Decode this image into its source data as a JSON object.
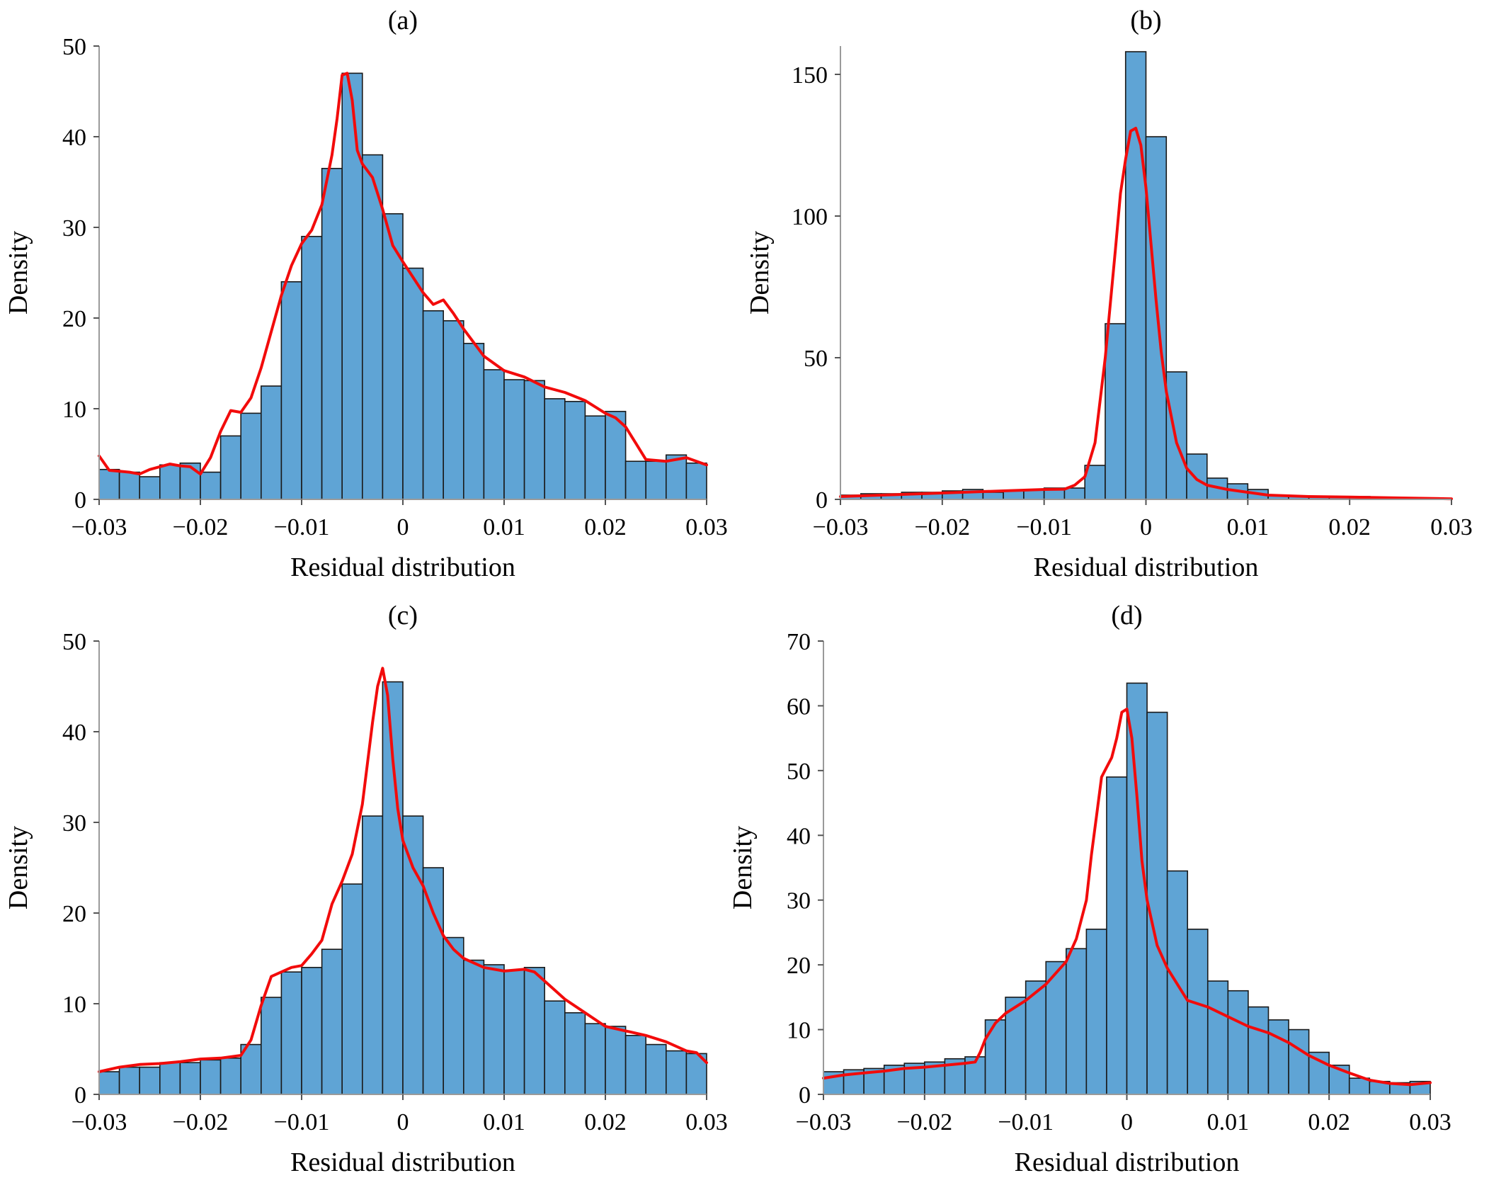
{
  "figure": {
    "colors": {
      "bar": "#5fa4d5",
      "kde": "#f20b0b",
      "edge": "#1a1a1a"
    }
  },
  "chart_data": [
    {
      "type": "bar",
      "title": "(a)",
      "xlabel": "Residual distribution",
      "ylabel": "Density",
      "xlim": [
        -0.03,
        0.03
      ],
      "ylim": [
        0,
        50
      ],
      "xticks": [
        -0.03,
        -0.02,
        -0.01,
        0,
        0.01,
        0.02,
        0.03
      ],
      "xtick_labels": [
        "−0.03",
        "−0.02",
        "−0.01",
        "0",
        "0.01",
        "0.02",
        "0.03"
      ],
      "yticks": [
        0,
        10,
        20,
        30,
        40,
        50
      ],
      "ytick_labels": [
        "0",
        "10",
        "20",
        "30",
        "40",
        "50"
      ],
      "bin_start": -0.03,
      "bin_width": 0.002,
      "values": [
        3.3,
        3.0,
        2.5,
        3.8,
        4.0,
        3.0,
        7.0,
        9.5,
        12.5,
        24,
        29,
        36.5,
        47,
        38,
        31.5,
        25.5,
        20.8,
        19.7,
        17.2,
        14.3,
        13.2,
        13.1,
        11.1,
        10.8,
        9.2,
        9.7,
        4.2,
        4.2,
        4.9,
        4.0
      ],
      "kde_x": [
        -0.03,
        -0.029,
        -0.028,
        -0.027,
        -0.026,
        -0.025,
        -0.024,
        -0.023,
        -0.022,
        -0.021,
        -0.02,
        -0.019,
        -0.018,
        -0.017,
        -0.016,
        -0.015,
        -0.014,
        -0.013,
        -0.012,
        -0.011,
        -0.01,
        -0.009,
        -0.008,
        -0.007,
        -0.0065,
        -0.006,
        -0.0055,
        -0.005,
        -0.0045,
        -0.004,
        -0.003,
        -0.002,
        -0.001,
        0,
        0.001,
        0.002,
        0.003,
        0.004,
        0.005,
        0.006,
        0.008,
        0.01,
        0.012,
        0.014,
        0.016,
        0.018,
        0.019,
        0.02,
        0.021,
        0.022,
        0.023,
        0.024,
        0.026,
        0.028,
        0.03
      ],
      "kde_y": [
        4.8,
        3.2,
        3.1,
        3.0,
        2.8,
        3.3,
        3.6,
        3.9,
        3.7,
        3.6,
        2.8,
        4.6,
        7.5,
        9.8,
        9.6,
        11.2,
        14.5,
        18.5,
        22.5,
        25.8,
        28.2,
        29.7,
        32.5,
        38.0,
        42.0,
        46.8,
        47.0,
        44.0,
        38.5,
        37.0,
        35.5,
        32.0,
        28.0,
        26.2,
        24.5,
        22.8,
        21.5,
        22.0,
        20.5,
        18.8,
        15.8,
        14.2,
        13.5,
        12.4,
        11.8,
        10.9,
        10.2,
        9.5,
        9.0,
        8.0,
        6.2,
        4.4,
        4.2,
        4.6,
        3.8
      ]
    },
    {
      "type": "bar",
      "title": "(b)",
      "xlabel": "Residual distribution",
      "ylabel": "Density",
      "xlim": [
        -0.03,
        0.03
      ],
      "ylim": [
        0,
        160
      ],
      "xticks": [
        -0.03,
        -0.02,
        -0.01,
        0,
        0.01,
        0.02,
        0.03
      ],
      "xtick_labels": [
        "−0.03",
        "−0.02",
        "−0.01",
        "0",
        "0.01",
        "0.02",
        "0.03"
      ],
      "yticks": [
        0,
        50,
        100,
        150
      ],
      "ytick_labels": [
        "0",
        "50",
        "100",
        "150"
      ],
      "bin_start": -0.03,
      "bin_width": 0.002,
      "values": [
        1.5,
        2.0,
        2.0,
        2.5,
        2.5,
        3.0,
        3.5,
        2.5,
        3.0,
        3.5,
        4.0,
        4.0,
        12.0,
        62.0,
        158.0,
        128.0,
        45.0,
        16.0,
        7.5,
        5.5,
        3.5,
        1.5,
        1.0,
        1.0,
        1.0,
        1.0,
        0.8,
        0.5,
        0.3,
        0.3
      ],
      "kde_x": [
        -0.03,
        -0.026,
        -0.022,
        -0.018,
        -0.014,
        -0.01,
        -0.008,
        -0.007,
        -0.006,
        -0.005,
        -0.004,
        -0.003,
        -0.0025,
        -0.002,
        -0.0015,
        -0.001,
        -0.0005,
        0,
        0.0005,
        0.001,
        0.0015,
        0.002,
        0.003,
        0.004,
        0.005,
        0.006,
        0.008,
        0.01,
        0.012,
        0.016,
        0.02,
        0.025,
        0.03
      ],
      "kde_y": [
        1.0,
        1.5,
        2.0,
        2.5,
        3.0,
        3.5,
        3.6,
        5.0,
        8.0,
        20.0,
        50.0,
        88.0,
        108.0,
        120.0,
        130.0,
        131.0,
        125.0,
        110.0,
        90.0,
        70.0,
        52.0,
        38.0,
        20.0,
        11.0,
        7.0,
        5.0,
        3.5,
        2.5,
        1.5,
        1.0,
        0.8,
        0.5,
        0.2
      ]
    },
    {
      "type": "bar",
      "title": "(c)",
      "xlabel": "Residual distribution",
      "ylabel": "Density",
      "xlim": [
        -0.03,
        0.03
      ],
      "ylim": [
        0,
        50
      ],
      "xticks": [
        -0.03,
        -0.02,
        -0.01,
        0,
        0.01,
        0.02,
        0.03
      ],
      "xtick_labels": [
        "−0.03",
        "−0.02",
        "−0.01",
        "0",
        "0.01",
        "0.02",
        "0.03"
      ],
      "yticks": [
        0,
        10,
        20,
        30,
        40,
        50
      ],
      "ytick_labels": [
        "0",
        "10",
        "20",
        "30",
        "40",
        "50"
      ],
      "bin_start": -0.03,
      "bin_width": 0.002,
      "values": [
        2.5,
        3.0,
        3.0,
        3.5,
        3.5,
        3.8,
        4.0,
        5.5,
        10.7,
        13.5,
        14.0,
        16.0,
        23.2,
        30.7,
        45.5,
        30.7,
        25.0,
        17.3,
        14.8,
        14.3,
        13.7,
        14.0,
        10.3,
        9.0,
        7.8,
        7.5,
        6.5,
        5.5,
        4.8,
        4.5
      ],
      "kde_x": [
        -0.03,
        -0.028,
        -0.026,
        -0.024,
        -0.022,
        -0.02,
        -0.018,
        -0.016,
        -0.015,
        -0.014,
        -0.013,
        -0.012,
        -0.011,
        -0.01,
        -0.009,
        -0.008,
        -0.007,
        -0.006,
        -0.005,
        -0.004,
        -0.003,
        -0.0025,
        -0.002,
        -0.0015,
        -0.001,
        -0.0005,
        0,
        0.001,
        0.002,
        0.003,
        0.004,
        0.005,
        0.006,
        0.008,
        0.01,
        0.012,
        0.013,
        0.014,
        0.016,
        0.018,
        0.02,
        0.022,
        0.024,
        0.026,
        0.028,
        0.029,
        0.03
      ],
      "kde_y": [
        2.5,
        3.0,
        3.3,
        3.4,
        3.6,
        3.9,
        4.0,
        4.3,
        6.0,
        9.8,
        13.0,
        13.5,
        14.0,
        14.2,
        15.5,
        17.0,
        21.0,
        23.5,
        26.5,
        32.0,
        41.0,
        45.0,
        47.0,
        44.0,
        37.0,
        31.5,
        28.0,
        25.0,
        23.0,
        20.0,
        17.5,
        16.0,
        15.0,
        14.0,
        13.6,
        13.8,
        13.5,
        12.5,
        10.5,
        9.0,
        7.5,
        7.0,
        6.5,
        5.8,
        4.8,
        4.6,
        3.5
      ]
    },
    {
      "type": "bar",
      "title": "(d)",
      "xlabel": "Residual distribution",
      "ylabel": "Density",
      "xlim": [
        -0.03,
        0.03
      ],
      "ylim": [
        0,
        70
      ],
      "xticks": [
        -0.03,
        -0.02,
        -0.01,
        0,
        0.01,
        0.02,
        0.03
      ],
      "xtick_labels": [
        "−0.03",
        "−0.02",
        "−0.01",
        "0",
        "0.01",
        "0.02",
        "0.03"
      ],
      "yticks": [
        0,
        10,
        20,
        30,
        40,
        50,
        60,
        70
      ],
      "ytick_labels": [
        "0",
        "10",
        "20",
        "30",
        "40",
        "50",
        "60",
        "70"
      ],
      "bin_start": -0.03,
      "bin_width": 0.002,
      "values": [
        3.5,
        3.8,
        4.0,
        4.5,
        4.8,
        5.0,
        5.5,
        5.8,
        11.5,
        15.0,
        17.5,
        20.5,
        22.5,
        25.5,
        49.0,
        63.5,
        59.0,
        34.5,
        25.5,
        17.5,
        16.0,
        13.5,
        11.5,
        10.0,
        6.5,
        4.5,
        2.5,
        2.0,
        1.8,
        2.0
      ],
      "kde_x": [
        -0.03,
        -0.028,
        -0.026,
        -0.024,
        -0.022,
        -0.02,
        -0.018,
        -0.016,
        -0.015,
        -0.0145,
        -0.014,
        -0.013,
        -0.012,
        -0.01,
        -0.008,
        -0.006,
        -0.005,
        -0.004,
        -0.0035,
        -0.003,
        -0.0025,
        -0.002,
        -0.0015,
        -0.001,
        -0.0005,
        0,
        0.0005,
        0.001,
        0.0015,
        0.002,
        0.003,
        0.004,
        0.005,
        0.006,
        0.008,
        0.01,
        0.012,
        0.014,
        0.016,
        0.018,
        0.02,
        0.022,
        0.024,
        0.026,
        0.028,
        0.03
      ],
      "kde_y": [
        2.5,
        3.0,
        3.3,
        3.6,
        4.0,
        4.2,
        4.5,
        4.8,
        5.0,
        6.5,
        8.5,
        11.0,
        12.5,
        14.5,
        17.0,
        20.5,
        24.0,
        30.0,
        37.0,
        43.0,
        49.0,
        50.5,
        52.0,
        55.0,
        59.0,
        59.5,
        55.0,
        46.0,
        36.0,
        30.0,
        23.0,
        19.5,
        17.0,
        14.5,
        13.5,
        12.0,
        10.5,
        9.5,
        8.0,
        6.0,
        4.5,
        3.3,
        2.2,
        1.7,
        1.5,
        1.8
      ]
    }
  ]
}
